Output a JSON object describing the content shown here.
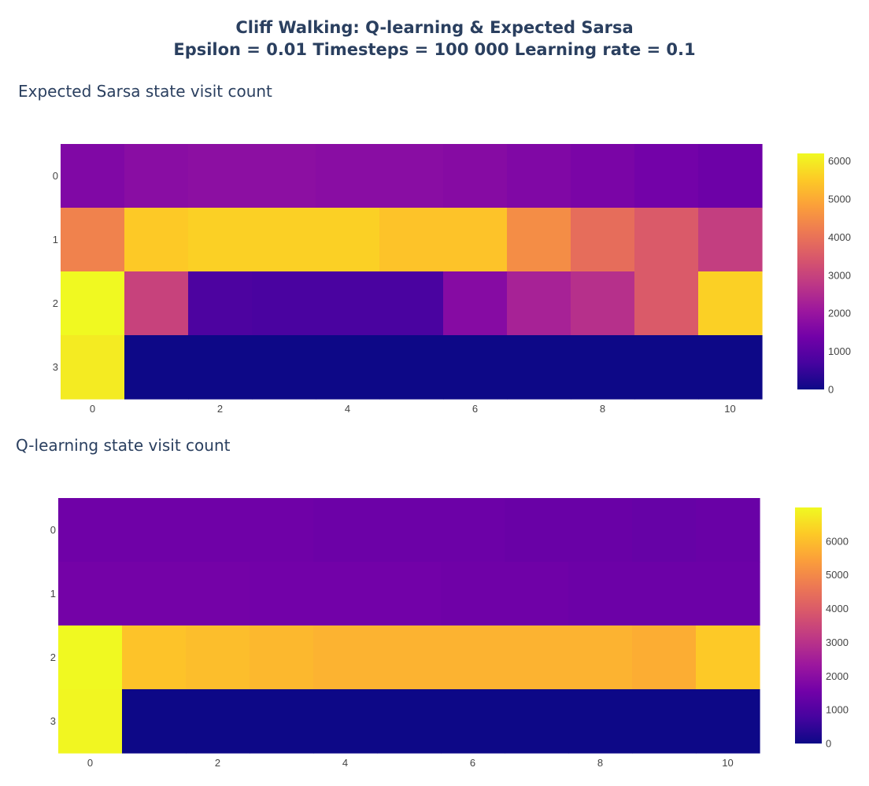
{
  "title_line1": "Cliff Walking: Q-learning & Expected Sarsa",
  "title_line2": "Epsilon = 0.01  Timesteps = 100 000  Learning rate = 0.1",
  "chart_data": [
    {
      "type": "heatmap",
      "title": "Expected Sarsa state visit count",
      "x_ticks": [
        "0",
        "2",
        "4",
        "6",
        "8",
        "10"
      ],
      "y_ticks": [
        "0",
        "1",
        "2",
        "3"
      ],
      "zmin": 0,
      "zmax": 6200,
      "colorbar_ticks": [
        "0",
        "1000",
        "2000",
        "3000",
        "4000",
        "5000",
        "6000"
      ],
      "z": [
        [
          1600,
          1750,
          1800,
          1800,
          1750,
          1750,
          1700,
          1600,
          1500,
          1400,
          1300
        ],
        [
          4300,
          5500,
          5600,
          5600,
          5600,
          5400,
          5400,
          4500,
          3900,
          3500,
          2900
        ],
        [
          6200,
          3000,
          800,
          750,
          750,
          750,
          1700,
          2300,
          2600,
          3500,
          5600
        ],
        [
          6000,
          0,
          0,
          0,
          0,
          0,
          0,
          0,
          0,
          0,
          0
        ]
      ]
    },
    {
      "type": "heatmap",
      "title": "Q-learning state visit count",
      "x_ticks": [
        "0",
        "2",
        "4",
        "6",
        "8",
        "10"
      ],
      "y_ticks": [
        "0",
        "1",
        "2",
        "3"
      ],
      "zmin": 0,
      "zmax": 7000,
      "colorbar_ticks": [
        "0",
        "1000",
        "2000",
        "3000",
        "4000",
        "5000",
        "6000"
      ],
      "z": [
        [
          1500,
          1500,
          1500,
          1500,
          1450,
          1450,
          1450,
          1400,
          1400,
          1350,
          1400
        ],
        [
          1600,
          1600,
          1600,
          1550,
          1550,
          1550,
          1500,
          1500,
          1450,
          1450,
          1450
        ],
        [
          7000,
          6100,
          6000,
          5900,
          5800,
          5800,
          5800,
          5800,
          5800,
          5700,
          6200
        ],
        [
          6950,
          0,
          0,
          0,
          0,
          0,
          0,
          0,
          0,
          0,
          0
        ]
      ]
    }
  ]
}
